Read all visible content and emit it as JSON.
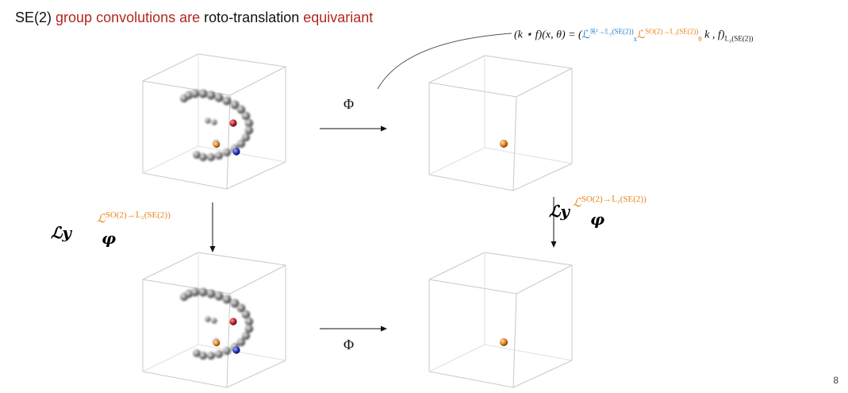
{
  "slide": {
    "title_part1": "SE(2)",
    "title_part2": "group convolutions are",
    "title_part3": "roto-translation",
    "title_part4": "equivariant",
    "formula_lhs": "(k ⋆ f)(x, θ) = (",
    "formula_L": "ℒ",
    "formula_Lx_sup": "ℝ²→𝕃₂(SE(2))",
    "formula_Lx_sub": "x",
    "formula_Ltheta_sup": "SO(2)→𝕃₂(SE(2))",
    "formula_Ltheta_sub": "θ",
    "formula_rhs": "k , f)",
    "formula_rhs_sub": "𝕃₂(SE(2))",
    "phi_top": "Φ",
    "phi_bottom": "Φ",
    "op_left_L": "ℒ",
    "op_left_sup": "SO(2)→𝕃₂(SE(2))",
    "op_right_L": "ℒ",
    "op_right_sup": "SO(2)→𝕃₂(SE(2))",
    "hand_left_a": "ℒy",
    "hand_left_b": "φ",
    "hand_right_a": "ℒy",
    "hand_right_b": "φ",
    "page_number": "8"
  },
  "colors": {
    "title_highlight": "#b3261e",
    "blue_term": "#2a7fc9",
    "orange_term": "#e8811a",
    "sphere_red": "#c0232b",
    "sphere_blue": "#2335c8",
    "sphere_orange": "#e8811a"
  }
}
